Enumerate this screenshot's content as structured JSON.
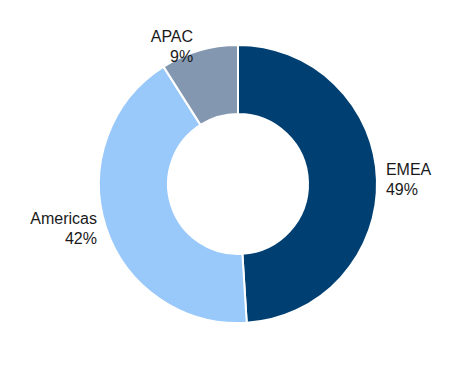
{
  "chart_data": {
    "type": "donut",
    "categories": [
      "EMEA",
      "Americas",
      "APAC"
    ],
    "values": [
      49,
      42,
      9
    ],
    "value_labels": [
      "49%",
      "42%",
      "9%"
    ],
    "colors": [
      "#003f72",
      "#99c9fb",
      "#8497b0"
    ],
    "data_labels": true
  }
}
